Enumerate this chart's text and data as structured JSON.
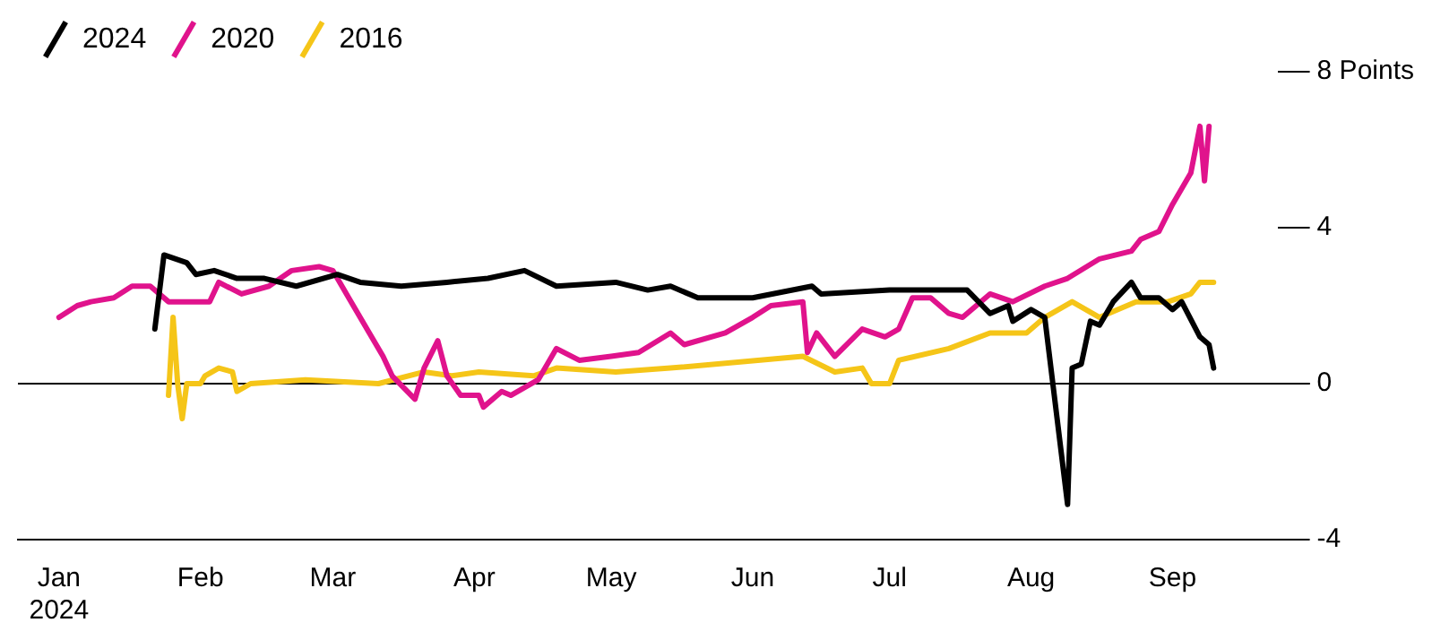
{
  "chart_data": {
    "type": "line",
    "legend": "top left",
    "grid": false,
    "marker": "none",
    "line_style": "solid",
    "xlim": [
      "2023-12-23",
      "2024-09-24"
    ],
    "xticks": [
      {
        "value": "2024-01-01",
        "label": "Jan\n2024"
      },
      {
        "value": "2024-02-01",
        "label": "Feb"
      },
      {
        "value": "2024-03-01",
        "label": "Mar"
      },
      {
        "value": "2024-04-01",
        "label": "Apr"
      },
      {
        "value": "2024-05-01",
        "label": "May"
      },
      {
        "value": "2024-06-01",
        "label": "Jun"
      },
      {
        "value": "2024-07-01",
        "label": "Jul"
      },
      {
        "value": "2024-08-01",
        "label": "Aug"
      },
      {
        "value": "2024-09-01",
        "label": "Sep"
      }
    ],
    "ylim": [
      -4,
      8
    ],
    "yticks": [
      -4,
      0,
      4,
      {
        "value": 8,
        "label": "8 Points"
      }
    ],
    "ref_lines": [
      {
        "axis": "y",
        "value": 0,
        "color": "#000000"
      }
    ],
    "series": [
      {
        "name": "2024",
        "color": "#000000",
        "x": [
          "2024-01-22",
          "2024-01-24",
          "2024-01-29",
          "2024-01-31",
          "2024-02-04",
          "2024-02-09",
          "2024-02-15",
          "2024-02-22",
          "2024-03-02",
          "2024-03-07",
          "2024-03-16",
          "2024-03-26",
          "2024-04-04",
          "2024-04-12",
          "2024-04-19",
          "2024-05-02",
          "2024-05-09",
          "2024-05-14",
          "2024-05-20",
          "2024-06-01",
          "2024-06-14",
          "2024-06-16",
          "2024-07-01",
          "2024-07-18",
          "2024-07-23",
          "2024-07-27",
          "2024-07-28",
          "2024-08-01",
          "2024-08-04",
          "2024-08-09",
          "2024-08-10",
          "2024-08-12",
          "2024-08-14",
          "2024-08-16",
          "2024-08-19",
          "2024-08-23",
          "2024-08-25",
          "2024-08-29",
          "2024-09-01",
          "2024-09-03",
          "2024-09-07",
          "2024-09-09",
          "2024-09-10"
        ],
        "values": [
          1.4,
          3.3,
          3.1,
          2.8,
          2.9,
          2.7,
          2.7,
          2.5,
          2.8,
          2.6,
          2.5,
          2.6,
          2.7,
          2.9,
          2.5,
          2.6,
          2.4,
          2.5,
          2.2,
          2.2,
          2.5,
          2.3,
          2.4,
          2.4,
          1.8,
          2.0,
          1.6,
          1.9,
          1.7,
          -3.1,
          0.4,
          0.5,
          1.6,
          1.5,
          2.1,
          2.6,
          2.2,
          2.2,
          1.9,
          2.1,
          1.2,
          1.0,
          0.4
        ]
      },
      {
        "name": "2020",
        "color": "#e0138c",
        "x": [
          "2024-01-01",
          "2024-01-05",
          "2024-01-08",
          "2024-01-13",
          "2024-01-17",
          "2024-01-21",
          "2024-01-25",
          "2024-01-28",
          "2024-02-03",
          "2024-02-05",
          "2024-02-10",
          "2024-02-16",
          "2024-02-21",
          "2024-02-27",
          "2024-03-01",
          "2024-03-05",
          "2024-03-09",
          "2024-03-12",
          "2024-03-14",
          "2024-03-19",
          "2024-03-21",
          "2024-03-24",
          "2024-03-26",
          "2024-03-29",
          "2024-04-02",
          "2024-04-03",
          "2024-04-07",
          "2024-04-09",
          "2024-04-15",
          "2024-04-19",
          "2024-04-24",
          "2024-05-01",
          "2024-05-07",
          "2024-05-14",
          "2024-05-17",
          "2024-05-26",
          "2024-06-01",
          "2024-06-05",
          "2024-06-12",
          "2024-06-13",
          "2024-06-15",
          "2024-06-19",
          "2024-06-25",
          "2024-06-30",
          "2024-07-03",
          "2024-07-06",
          "2024-07-10",
          "2024-07-14",
          "2024-07-17",
          "2024-07-23",
          "2024-07-28",
          "2024-08-04",
          "2024-08-09",
          "2024-08-16",
          "2024-08-23",
          "2024-08-25",
          "2024-08-29",
          "2024-09-01",
          "2024-09-05",
          "2024-09-07",
          "2024-09-08",
          "2024-09-09"
        ],
        "values": [
          1.7,
          2.0,
          2.1,
          2.2,
          2.5,
          2.5,
          2.1,
          2.1,
          2.1,
          2.6,
          2.3,
          2.5,
          2.9,
          3.0,
          2.9,
          2.1,
          1.3,
          0.7,
          0.2,
          -0.4,
          0.4,
          1.1,
          0.2,
          -0.3,
          -0.3,
          -0.6,
          -0.2,
          -0.3,
          0.1,
          0.9,
          0.6,
          0.7,
          0.8,
          1.3,
          1.0,
          1.3,
          1.7,
          2.0,
          2.1,
          0.8,
          1.3,
          0.7,
          1.4,
          1.2,
          1.4,
          2.2,
          2.2,
          1.8,
          1.7,
          2.3,
          2.1,
          2.5,
          2.7,
          3.2,
          3.4,
          3.7,
          3.9,
          4.6,
          5.4,
          6.6,
          5.2,
          6.6
        ]
      },
      {
        "name": "2016",
        "color": "#f5c518",
        "x": [
          "2024-01-25",
          "2024-01-26",
          "2024-01-27",
          "2024-01-28",
          "2024-01-29",
          "2024-02-01",
          "2024-02-02",
          "2024-02-05",
          "2024-02-08",
          "2024-02-09",
          "2024-02-12",
          "2024-02-24",
          "2024-03-11",
          "2024-03-21",
          "2024-03-27",
          "2024-04-02",
          "2024-04-14",
          "2024-04-19",
          "2024-05-02",
          "2024-05-14",
          "2024-06-12",
          "2024-06-19",
          "2024-06-25",
          "2024-06-27",
          "2024-07-01",
          "2024-07-03",
          "2024-07-14",
          "2024-07-23",
          "2024-07-31",
          "2024-08-04",
          "2024-08-10",
          "2024-08-16",
          "2024-08-24",
          "2024-08-31",
          "2024-09-05",
          "2024-09-07",
          "2024-09-10"
        ],
        "values": [
          -0.3,
          1.7,
          0.0,
          -0.9,
          0.0,
          0.0,
          0.2,
          0.4,
          0.3,
          -0.2,
          0.0,
          0.1,
          0.0,
          0.3,
          0.2,
          0.3,
          0.2,
          0.4,
          0.3,
          0.4,
          0.7,
          0.3,
          0.4,
          0.0,
          0.0,
          0.6,
          0.9,
          1.3,
          1.3,
          1.7,
          2.1,
          1.7,
          2.1,
          2.1,
          2.3,
          2.6,
          2.6
        ]
      }
    ]
  }
}
